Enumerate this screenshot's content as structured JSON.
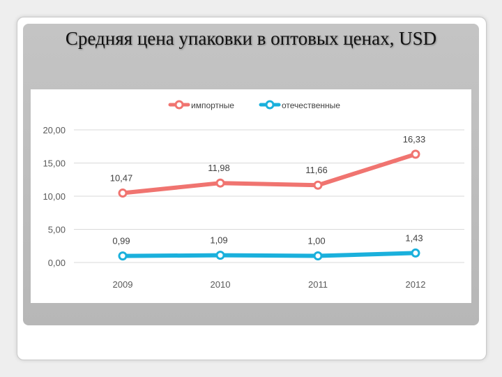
{
  "title": "Средняя цена упаковки в оптовых ценах, USD",
  "chart_data": {
    "type": "line",
    "categories": [
      "2009",
      "2010",
      "2011",
      "2012"
    ],
    "series": [
      {
        "name": "импортные",
        "values": [
          10.47,
          11.98,
          11.66,
          16.33
        ],
        "labels": [
          "10,47",
          "11,98",
          "11,66",
          "16,33"
        ],
        "color": "#f07470"
      },
      {
        "name": "отечественные",
        "values": [
          0.99,
          1.09,
          1.0,
          1.43
        ],
        "labels": [
          "0,99",
          "1,09",
          "1,00",
          "1,43"
        ],
        "color": "#1ab0dc"
      }
    ],
    "yticks": [
      "0,00",
      "5,00",
      "10,00",
      "15,00",
      "20,00"
    ],
    "ytick_values": [
      0,
      5,
      10,
      15,
      20
    ],
    "ylim": [
      0,
      20
    ],
    "grid": true,
    "legend": "top-center",
    "xlabel": "",
    "ylabel": ""
  }
}
